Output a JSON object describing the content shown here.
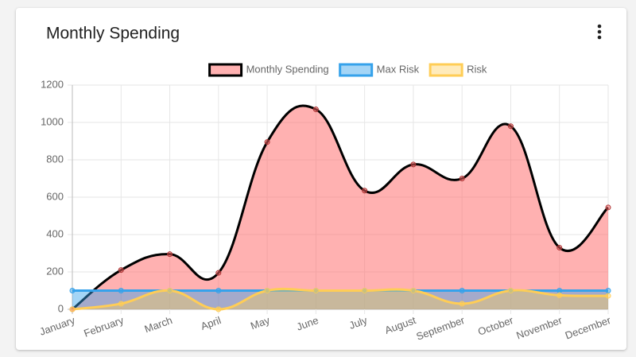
{
  "header": {
    "title": "Monthly Spending"
  },
  "chart_data": {
    "type": "area",
    "categories": [
      "January",
      "February",
      "March",
      "April",
      "May",
      "June",
      "July",
      "August",
      "September",
      "October",
      "November",
      "December"
    ],
    "series": [
      {
        "name": "Monthly Spending",
        "color": "#000000",
        "fill": "rgba(255,99,99,0.5)",
        "values": [
          0,
          210,
          295,
          195,
          895,
          1070,
          635,
          775,
          700,
          980,
          330,
          545
        ]
      },
      {
        "name": "Max Risk",
        "color": "#36a2eb",
        "fill": "rgba(54,162,235,0.45)",
        "values": [
          100,
          100,
          100,
          100,
          100,
          100,
          100,
          100,
          100,
          100,
          100,
          100
        ]
      },
      {
        "name": "Risk",
        "color": "#ffcd56",
        "fill": "rgba(255,205,86,0.4)",
        "values": [
          0,
          30,
          100,
          0,
          100,
          100,
          100,
          100,
          30,
          100,
          75,
          72
        ]
      }
    ],
    "ylim": [
      0,
      1200
    ],
    "yticks": [
      0,
      200,
      400,
      600,
      800,
      1000,
      1200
    ],
    "grid": true,
    "legend": "top"
  }
}
